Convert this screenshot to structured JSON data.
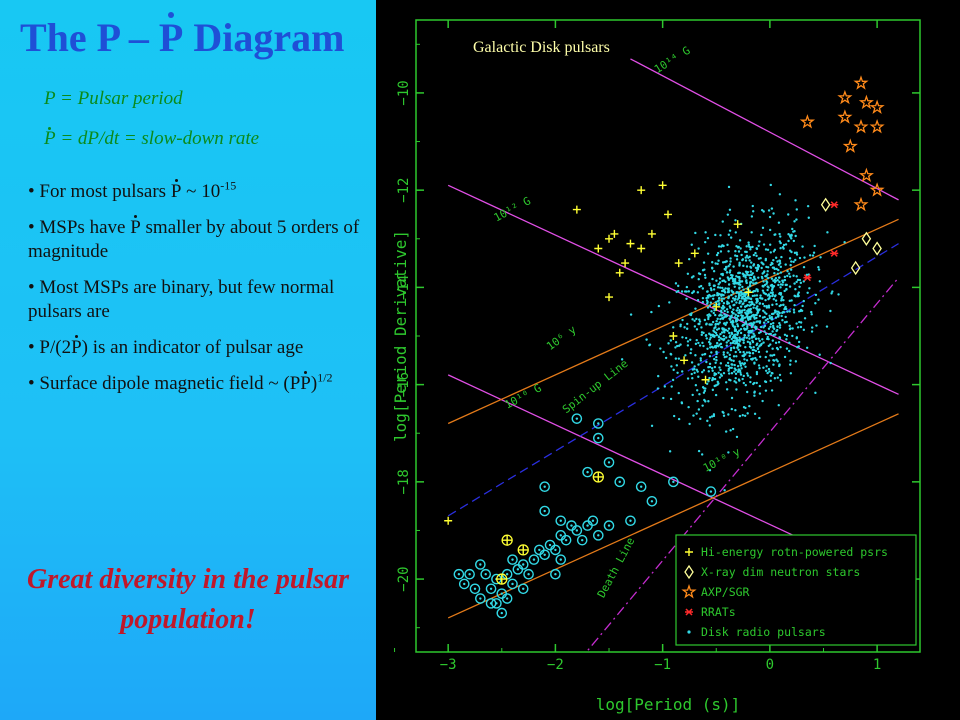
{
  "slide": {
    "title_pre": "The P – ",
    "title_p": "P",
    "title_post": " Diagram",
    "def1": "P = Pulsar period",
    "def2_p": "P",
    "def2_rest": " = dP/dt = slow-down rate",
    "bullets": {
      "b1_pre": "For most pulsars ",
      "b1_p": "P",
      "b1_mid": " ~ 10",
      "b1_exp": "-15",
      "b2_pre": "MSPs have ",
      "b2_p": "P",
      "b2_post": " smaller by about 5 orders of magnitude",
      "b3": "Most MSPs are binary, but few normal pulsars are",
      "b4_pre": "P/(2",
      "b4_p": "P",
      "b4_post": ") is an indicator of pulsar age",
      "b5_pre": "Surface dipole magnetic field ~ (P",
      "b5_p": "P",
      "b5_mid": ")",
      "b5_exp": "1/2"
    },
    "conclusion": "Great diversity in the pulsar population!"
  },
  "chart_data": {
    "type": "scatter",
    "title": "Galactic Disk pulsars",
    "xlabel": "log[Period (s)]",
    "ylabel": "log[Period Derivative]",
    "xlim": [
      -3.3,
      1.4
    ],
    "ylim": [
      -21.5,
      -8.5
    ],
    "x_ticks": [
      -3,
      -2,
      -1,
      0,
      1
    ],
    "y_ticks": [
      -10,
      -12,
      -14,
      -16,
      -18,
      -20
    ],
    "colors": {
      "field": "#e14fe6",
      "age": "#e37a19",
      "spinup": "#2a2fe0",
      "death": "#c42ccf",
      "hi": "#ffff33",
      "xdins": "#ffff99",
      "axp": "#ff8a1a",
      "rrat": "#ff2a2a",
      "radio": "#32d9e6",
      "axis": "#2ec82e"
    },
    "lines": [
      {
        "label": "10¹⁴ G",
        "kind": "field",
        "x": [
          -1.3,
          1.2
        ],
        "y": [
          -9.3,
          -12.2
        ]
      },
      {
        "label": "10¹² G",
        "kind": "field",
        "x": [
          -3.0,
          1.2
        ],
        "y": [
          -11.9,
          -16.2
        ]
      },
      {
        "label": "10¹⁰ G",
        "kind": "field",
        "x": [
          -3.0,
          0.9
        ],
        "y": [
          -15.8,
          -19.8
        ]
      },
      {
        "label": "10⁶ y",
        "kind": "age",
        "x": [
          -3.0,
          1.2
        ],
        "y": [
          -16.8,
          -12.6
        ]
      },
      {
        "label": "10¹⁰ y",
        "kind": "age",
        "x": [
          -3.0,
          1.2
        ],
        "y": [
          -20.8,
          -16.6
        ]
      },
      {
        "label": "Spin-up Line",
        "kind": "spinup",
        "x": [
          -3.0,
          1.2
        ],
        "y": [
          -18.7,
          -13.1
        ]
      },
      {
        "label": "Death Line",
        "kind": "death",
        "x": [
          -1.9,
          1.2
        ],
        "y": [
          -22.0,
          -13.8
        ]
      }
    ],
    "series": [
      {
        "name": "Hi-energy rotn-powered psrs",
        "marker": "plus",
        "points": [
          [
            -3.0,
            -18.8
          ],
          [
            -1.8,
            -12.4
          ],
          [
            -1.6,
            -13.2
          ],
          [
            -1.4,
            -13.7
          ],
          [
            -1.2,
            -13.2
          ],
          [
            -1.1,
            -12.9
          ],
          [
            -1.3,
            -13.1
          ],
          [
            -1.0,
            -11.9
          ],
          [
            -0.95,
            -12.5
          ],
          [
            -0.7,
            -13.3
          ],
          [
            -0.8,
            -15.5
          ],
          [
            -0.6,
            -15.9
          ],
          [
            -0.5,
            -14.4
          ],
          [
            -1.5,
            -14.2
          ],
          [
            -0.3,
            -12.7
          ],
          [
            -0.2,
            -14.1
          ],
          [
            -0.9,
            -15.0
          ],
          [
            -1.5,
            -13.0
          ],
          [
            -1.45,
            -12.9
          ],
          [
            -1.2,
            -12.0
          ],
          [
            -0.85,
            -13.5
          ],
          [
            -1.35,
            -13.5
          ]
        ]
      },
      {
        "name": "X-ray dim neutron stars",
        "marker": "diamond",
        "points": [
          [
            0.52,
            -12.3
          ],
          [
            0.9,
            -13.0
          ],
          [
            1.0,
            -13.2
          ],
          [
            0.8,
            -13.6
          ]
        ]
      },
      {
        "name": "AXP/SGR",
        "marker": "star",
        "points": [
          [
            0.85,
            -9.8
          ],
          [
            0.7,
            -10.1
          ],
          [
            0.9,
            -10.2
          ],
          [
            1.0,
            -10.3
          ],
          [
            0.7,
            -10.5
          ],
          [
            0.35,
            -10.6
          ],
          [
            0.85,
            -10.7
          ],
          [
            1.0,
            -10.7
          ],
          [
            0.75,
            -11.1
          ],
          [
            0.9,
            -11.7
          ],
          [
            1.0,
            -12.0
          ],
          [
            0.85,
            -12.3
          ]
        ]
      },
      {
        "name": "RRATs",
        "marker": "cross",
        "points": [
          [
            0.6,
            -12.3
          ],
          [
            0.6,
            -13.3
          ],
          [
            0.35,
            -13.8
          ]
        ]
      },
      {
        "name": "Disk radio pulsars",
        "marker": "dot",
        "cluster": {
          "center": [
            -0.25,
            -14.6
          ],
          "spread": [
            0.3,
            0.85
          ],
          "count": 1400
        },
        "msp_points": [
          [
            -2.9,
            -19.9
          ],
          [
            -2.85,
            -20.1
          ],
          [
            -2.8,
            -19.9
          ],
          [
            -2.75,
            -20.2
          ],
          [
            -2.7,
            -19.7
          ],
          [
            -2.65,
            -19.9
          ],
          [
            -2.6,
            -20.2
          ],
          [
            -2.55,
            -20.0
          ],
          [
            -2.5,
            -20.3
          ],
          [
            -2.45,
            -19.9
          ],
          [
            -2.4,
            -20.1
          ],
          [
            -2.35,
            -19.8
          ],
          [
            -2.3,
            -20.2
          ],
          [
            -2.25,
            -19.9
          ],
          [
            -2.2,
            -19.6
          ],
          [
            -2.15,
            -19.4
          ],
          [
            -2.1,
            -19.5
          ],
          [
            -2.05,
            -19.3
          ],
          [
            -2.0,
            -19.4
          ],
          [
            -1.95,
            -19.1
          ],
          [
            -1.9,
            -19.2
          ],
          [
            -1.85,
            -18.9
          ],
          [
            -1.8,
            -19.0
          ],
          [
            -1.75,
            -19.2
          ],
          [
            -1.7,
            -18.9
          ],
          [
            -1.65,
            -18.8
          ],
          [
            -1.6,
            -19.1
          ],
          [
            -1.5,
            -18.9
          ],
          [
            -1.3,
            -18.8
          ],
          [
            -1.1,
            -18.4
          ],
          [
            -0.9,
            -18.0
          ],
          [
            -2.6,
            -20.5
          ],
          [
            -2.5,
            -20.7
          ],
          [
            -2.55,
            -20.5
          ],
          [
            -2.45,
            -20.4
          ],
          [
            -2.3,
            -19.7
          ],
          [
            -2.0,
            -19.9
          ],
          [
            -1.95,
            -19.6
          ],
          [
            -1.7,
            -17.8
          ],
          [
            -1.6,
            -17.1
          ],
          [
            -1.6,
            -16.8
          ],
          [
            -1.5,
            -17.6
          ],
          [
            -1.4,
            -18.0
          ],
          [
            -1.8,
            -16.7
          ],
          [
            -2.1,
            -18.6
          ],
          [
            -1.2,
            -18.1
          ],
          [
            -2.7,
            -20.4
          ],
          [
            -2.4,
            -19.6
          ],
          [
            -0.55,
            -18.2
          ],
          [
            -1.95,
            -18.8
          ],
          [
            -2.1,
            -18.1
          ]
        ]
      }
    ],
    "legend": {
      "position": "bottom-right",
      "entries": [
        "Hi-energy rotn-powered psrs",
        "X-ray dim neutron stars",
        "AXP/SGR",
        "RRATs",
        "Disk radio pulsars"
      ]
    }
  }
}
